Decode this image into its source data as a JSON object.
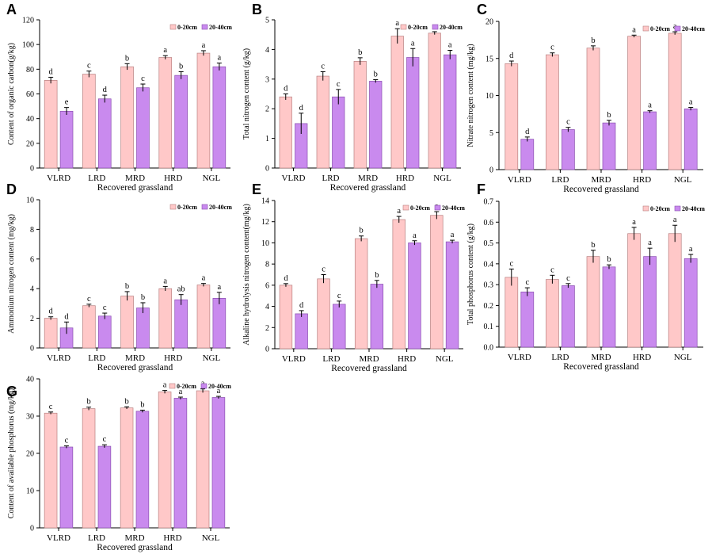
{
  "colors": {
    "s0": "#FFC8C8",
    "s1": "#C98AEE",
    "s0_edge": "#B88080",
    "s1_edge": "#8A4FB0"
  },
  "chart_data": [
    {
      "panel": "A",
      "type": "bar",
      "categories": [
        "VLRD",
        "LRD",
        "MRD",
        "HRD",
        "NGL"
      ],
      "xlabel": "Recovered grassland",
      "ylabel": "Content of organic carbon(g/kg)",
      "ylim": [
        0,
        120
      ],
      "yticks": [
        0,
        20,
        40,
        60,
        80,
        100,
        120
      ],
      "series": [
        {
          "name": "0-20cm",
          "values": [
            71,
            76,
            82,
            89.5,
            93
          ],
          "errors": [
            2.5,
            2.5,
            2.5,
            1.5,
            2
          ],
          "letters": [
            "d",
            "c",
            "b",
            "a",
            "a"
          ]
        },
        {
          "name": "20-40cm",
          "values": [
            46,
            56,
            65,
            75,
            82
          ],
          "errors": [
            3,
            3,
            3,
            3,
            3
          ],
          "letters": [
            "e",
            "d",
            "c",
            "b",
            "a"
          ]
        }
      ]
    },
    {
      "panel": "B",
      "type": "bar",
      "categories": [
        "VLRD",
        "LRD",
        "MRD",
        "HRD",
        "NGL"
      ],
      "xlabel": "Recovered grassland",
      "ylabel": "Total nitrogen content (g/kg)",
      "ylim": [
        0,
        5
      ],
      "yticks": [
        0,
        1,
        2,
        3,
        4,
        5
      ],
      "series": [
        {
          "name": "0-20cm",
          "values": [
            2.4,
            3.1,
            3.6,
            4.45,
            4.55
          ],
          "errors": [
            0.1,
            0.15,
            0.12,
            0.25,
            0.05
          ],
          "letters": [
            "d",
            "c",
            "b",
            "a",
            "a"
          ]
        },
        {
          "name": "20-40cm",
          "values": [
            1.5,
            2.4,
            2.93,
            3.73,
            3.82
          ],
          "errors": [
            0.35,
            0.25,
            0.05,
            0.3,
            0.15
          ],
          "letters": [
            "d",
            "c",
            "b",
            "a",
            "a"
          ]
        }
      ]
    },
    {
      "panel": "C",
      "type": "bar",
      "categories": [
        "VLRD",
        "LRD",
        "MRD",
        "HRD",
        "NGL"
      ],
      "xlabel": "Recovered grassland",
      "ylabel": "Nitrate nitrogen content (mg/kg)",
      "ylim": [
        0,
        20
      ],
      "yticks": [
        0,
        5,
        10,
        15,
        20
      ],
      "series": [
        {
          "name": "0-20cm",
          "values": [
            14.3,
            15.5,
            16.4,
            18,
            18.4
          ],
          "errors": [
            0.35,
            0.25,
            0.3,
            0.15,
            0.2
          ],
          "letters": [
            "d",
            "c",
            "b",
            "a",
            "a"
          ]
        },
        {
          "name": "20-40cm",
          "values": [
            4.1,
            5.4,
            6.3,
            7.8,
            8.2
          ],
          "errors": [
            0.3,
            0.3,
            0.35,
            0.15,
            0.2
          ],
          "letters": [
            "d",
            "c",
            "b",
            "a",
            "a"
          ]
        }
      ]
    },
    {
      "panel": "D",
      "type": "bar",
      "categories": [
        "VLRD",
        "LRD",
        "MRD",
        "HRD",
        "NGL"
      ],
      "xlabel": "Recovered grassland",
      "ylabel": "Ammonium nitrogen content (mg/kg)",
      "ylim": [
        0,
        10
      ],
      "yticks": [
        0,
        2,
        4,
        6,
        8,
        10
      ],
      "series": [
        {
          "name": "0-20cm",
          "values": [
            2,
            2.85,
            3.5,
            4,
            4.25
          ],
          "errors": [
            0.1,
            0.1,
            0.3,
            0.15,
            0.1
          ],
          "letters": [
            "d",
            "c",
            "b",
            "a",
            "a"
          ]
        },
        {
          "name": "20-40cm",
          "values": [
            1.35,
            2.15,
            2.7,
            3.25,
            3.35
          ],
          "errors": [
            0.4,
            0.2,
            0.35,
            0.35,
            0.4
          ],
          "letters": [
            "d",
            "c",
            "b",
            "ab",
            "a"
          ]
        }
      ]
    },
    {
      "panel": "E",
      "type": "bar",
      "categories": [
        "VLRD",
        "LRD",
        "MRD",
        "HRD",
        "NGL"
      ],
      "xlabel": "Recovered grassland",
      "ylabel": "Alkaline hydrolysis nitrogen content(mg/kg)",
      "ylim": [
        0,
        14
      ],
      "yticks": [
        0,
        2,
        4,
        6,
        8,
        10,
        12,
        14
      ],
      "series": [
        {
          "name": "0-20cm",
          "values": [
            6,
            6.6,
            10.4,
            12.2,
            12.6
          ],
          "errors": [
            0.15,
            0.4,
            0.25,
            0.3,
            0.35
          ],
          "letters": [
            "d",
            "c",
            "b",
            "a",
            "a"
          ]
        },
        {
          "name": "20-40cm",
          "values": [
            3.3,
            4.2,
            6.1,
            10,
            10.1
          ],
          "errors": [
            0.3,
            0.3,
            0.35,
            0.2,
            0.15
          ],
          "letters": [
            "d",
            "c",
            "b",
            "a",
            "a"
          ]
        }
      ]
    },
    {
      "panel": "F",
      "type": "bar",
      "categories": [
        "VLRD",
        "LRD",
        "MRD",
        "HRD",
        "NGL"
      ],
      "xlabel": "Recovered grassland",
      "ylabel": "Total phosphorus content (g/kg)",
      "ylim": [
        0,
        0.7
      ],
      "yticks": [
        0.0,
        0.1,
        0.2,
        0.3,
        0.4,
        0.5,
        0.6,
        0.7
      ],
      "tickDecimals": 1,
      "series": [
        {
          "name": "0-20cm",
          "values": [
            0.335,
            0.325,
            0.435,
            0.545,
            0.545
          ],
          "errors": [
            0.04,
            0.02,
            0.03,
            0.03,
            0.04
          ],
          "letters": [
            "c",
            "c",
            "b",
            "a",
            "a"
          ]
        },
        {
          "name": "20-40cm",
          "values": [
            0.265,
            0.295,
            0.385,
            0.435,
            0.425
          ],
          "errors": [
            0.02,
            0.01,
            0.01,
            0.04,
            0.02
          ],
          "letters": [
            "c",
            "c",
            "b",
            "a",
            "a"
          ]
        }
      ]
    },
    {
      "panel": "G",
      "type": "bar",
      "categories": [
        "VLRD",
        "LRD",
        "MRD",
        "HRD",
        "NGL"
      ],
      "xlabel": "Recovered grassland",
      "ylabel": "Content of available phosphorus (mg/kg)",
      "ylim": [
        0,
        40
      ],
      "yticks": [
        0,
        10,
        20,
        30,
        40
      ],
      "series": [
        {
          "name": "0-20cm",
          "values": [
            30.8,
            32,
            32.2,
            36.5,
            36.8
          ],
          "errors": [
            0.3,
            0.4,
            0.3,
            0.4,
            0.5
          ],
          "letters": [
            "c",
            "b",
            "b",
            "a",
            "a"
          ]
        },
        {
          "name": "20-40cm",
          "values": [
            21.7,
            21.9,
            31.3,
            34.8,
            35
          ],
          "errors": [
            0.3,
            0.4,
            0.3,
            0.3,
            0.3
          ],
          "letters": [
            "c",
            "c",
            "b",
            "a",
            "a"
          ]
        }
      ]
    }
  ]
}
